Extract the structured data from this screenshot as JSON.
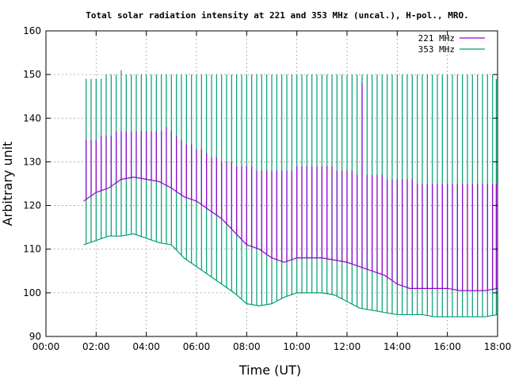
{
  "chart_data": {
    "type": "line",
    "title": "Total solar radiation intensity at 221 and 353 MHz (uncal.), H-pol., MRO.",
    "xlabel": "Time (UT)",
    "ylabel": "Arbitrary unit",
    "xlim": [
      0,
      18
    ],
    "ylim": [
      90,
      160
    ],
    "x_tick_labels": [
      "00:00",
      "02:00",
      "04:00",
      "06:00",
      "08:00",
      "10:00",
      "12:00",
      "14:00",
      "16:00",
      "18:00"
    ],
    "y_ticks": [
      90,
      100,
      110,
      120,
      130,
      140,
      150,
      160
    ],
    "grid": true,
    "legend_position": "top-right",
    "series": [
      {
        "name": "221 MHz",
        "color": "#9400d3",
        "x": [
          1.5,
          2.0,
          2.5,
          3.0,
          3.5,
          4.0,
          4.5,
          5.0,
          5.5,
          6.0,
          6.5,
          7.0,
          7.5,
          8.0,
          8.5,
          9.0,
          9.5,
          10.0,
          10.5,
          11.0,
          11.5,
          12.0,
          12.5,
          13.0,
          13.5,
          14.0,
          14.5,
          15.0,
          15.5,
          16.0,
          16.5,
          17.0,
          17.5,
          18.0
        ],
        "y": [
          121,
          123,
          124,
          126,
          126.5,
          126,
          125.5,
          124,
          122,
          121,
          119,
          117,
          114,
          111,
          110,
          108,
          107,
          108,
          108,
          108,
          107.5,
          107,
          106,
          105,
          104,
          102,
          101,
          101,
          101,
          101,
          100.5,
          100.5,
          100.5,
          101
        ]
      },
      {
        "name": "353 MHz",
        "color": "#009e73",
        "x": [
          1.5,
          2.0,
          2.5,
          3.0,
          3.5,
          4.0,
          4.5,
          5.0,
          5.5,
          6.0,
          6.5,
          7.0,
          7.5,
          8.0,
          8.5,
          9.0,
          9.5,
          10.0,
          10.5,
          11.0,
          11.5,
          12.0,
          12.5,
          13.0,
          13.5,
          14.0,
          14.5,
          15.0,
          15.5,
          16.0,
          16.5,
          17.0,
          17.5,
          18.0
        ],
        "y": [
          111,
          112,
          113,
          113,
          113.5,
          112.5,
          111.5,
          111,
          108,
          106,
          104,
          102,
          100,
          97.5,
          97,
          97.5,
          99,
          100,
          100,
          100,
          99.5,
          98,
          96.5,
          96,
          95.5,
          95,
          95,
          95,
          94.5,
          94.5,
          94.5,
          94.5,
          94.5,
          95
        ]
      }
    ],
    "calibration_spikes": {
      "221 MHz": {
        "x": [
          1.6,
          1.8,
          2.0,
          2.2,
          2.4,
          2.6,
          2.8,
          3.0,
          3.2,
          3.4,
          3.6,
          3.8,
          4.0,
          4.2,
          4.4,
          4.6,
          4.8,
          5.0,
          5.2,
          5.4,
          5.6,
          5.8,
          6.0,
          6.2,
          6.4,
          6.6,
          6.8,
          7.0,
          7.2,
          7.4,
          7.6,
          7.8,
          8.0,
          8.2,
          8.4,
          8.6,
          8.8,
          9.0,
          9.2,
          9.4,
          9.6,
          9.8,
          10.0,
          10.2,
          10.4,
          10.6,
          10.8,
          11.0,
          11.2,
          11.4,
          11.6,
          11.8,
          12.0,
          12.2,
          12.4,
          12.6,
          12.8,
          13.0,
          13.2,
          13.4,
          13.6,
          13.8,
          14.0,
          14.2,
          14.4,
          14.6,
          14.8,
          15.0,
          15.2,
          15.4,
          15.6,
          15.8,
          16.0,
          16.2,
          16.4,
          16.6,
          16.8,
          17.0,
          17.2,
          17.4,
          17.6,
          17.8,
          17.95
        ],
        "y": [
          135,
          135,
          135,
          136,
          136,
          136,
          137,
          137,
          137,
          137,
          137,
          137,
          137,
          137,
          137,
          137,
          138,
          137,
          136,
          135,
          134,
          134,
          133,
          133,
          132,
          131,
          131,
          130,
          130,
          130,
          129,
          129,
          129,
          129,
          128,
          128,
          128,
          128,
          128,
          128,
          128,
          128,
          129,
          129,
          129,
          129,
          129,
          129,
          129,
          129,
          128,
          128,
          128,
          128,
          127,
          148,
          127,
          127,
          127,
          127,
          126,
          126,
          126,
          126,
          126,
          126,
          125,
          125,
          125,
          125,
          125,
          125,
          125,
          125,
          125,
          125,
          125,
          125,
          125,
          125,
          125,
          125,
          125
        ]
      },
      "353 MHz": {
        "x": [
          1.6,
          1.8,
          2.0,
          2.2,
          2.4,
          2.6,
          2.8,
          3.0,
          3.2,
          3.4,
          3.6,
          3.8,
          4.0,
          4.2,
          4.4,
          4.6,
          4.8,
          5.0,
          5.2,
          5.4,
          5.6,
          5.8,
          6.0,
          6.2,
          6.4,
          6.6,
          6.8,
          7.0,
          7.2,
          7.4,
          7.6,
          7.8,
          8.0,
          8.2,
          8.4,
          8.6,
          8.8,
          9.0,
          9.2,
          9.4,
          9.6,
          9.8,
          10.0,
          10.2,
          10.4,
          10.6,
          10.8,
          11.0,
          11.2,
          11.4,
          11.6,
          11.8,
          12.0,
          12.2,
          12.4,
          12.6,
          12.8,
          13.0,
          13.2,
          13.4,
          13.6,
          13.8,
          14.0,
          14.2,
          14.4,
          14.6,
          14.8,
          15.0,
          15.2,
          15.4,
          15.6,
          15.8,
          16.0,
          16.2,
          16.4,
          16.6,
          16.8,
          17.0,
          17.2,
          17.4,
          17.6,
          17.8,
          17.95
        ],
        "y": [
          149,
          149,
          149,
          149,
          150,
          150,
          150,
          151,
          150,
          150,
          150,
          150,
          150,
          150,
          150,
          150,
          150,
          150,
          150,
          150,
          150,
          150,
          150,
          150,
          150,
          150,
          150,
          150,
          150,
          150,
          150,
          150,
          150,
          150,
          150,
          150,
          150,
          150,
          150,
          150,
          150,
          150,
          150,
          150,
          150,
          150,
          150,
          150,
          150,
          150,
          150,
          150,
          150,
          150,
          150,
          150,
          150,
          150,
          150,
          150,
          150,
          150,
          150,
          150,
          150,
          150,
          150,
          150,
          150,
          150,
          150,
          150,
          150,
          150,
          150,
          150,
          150,
          150,
          150,
          150,
          150,
          150,
          149
        ]
      }
    }
  }
}
